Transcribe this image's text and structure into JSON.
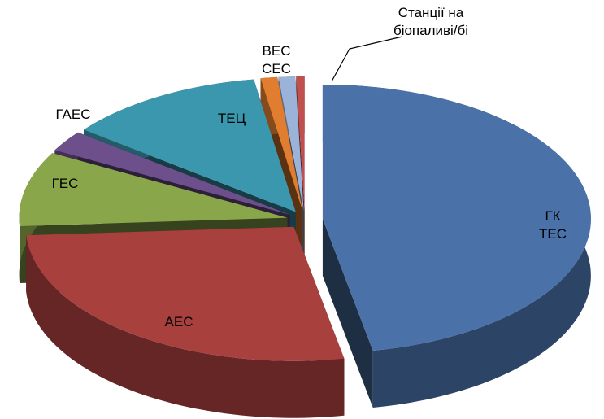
{
  "chart_data": {
    "type": "pie3d",
    "categories": [
      "ГК ТЕС",
      "АЕС",
      "ГЕС",
      "ГАЕС",
      "ТЕЦ",
      "ВЕС",
      "СЕС",
      "Станції на біопаливі/бі"
    ],
    "values": [
      47,
      27,
      9,
      2.5,
      12,
      1,
      1,
      0.5
    ],
    "colors": [
      "#4a72a8",
      "#a8403e",
      "#8aa64a",
      "#6d4f8c",
      "#3a97ad",
      "#e07d2e",
      "#9bb3d8",
      "#c0504d"
    ]
  }
}
